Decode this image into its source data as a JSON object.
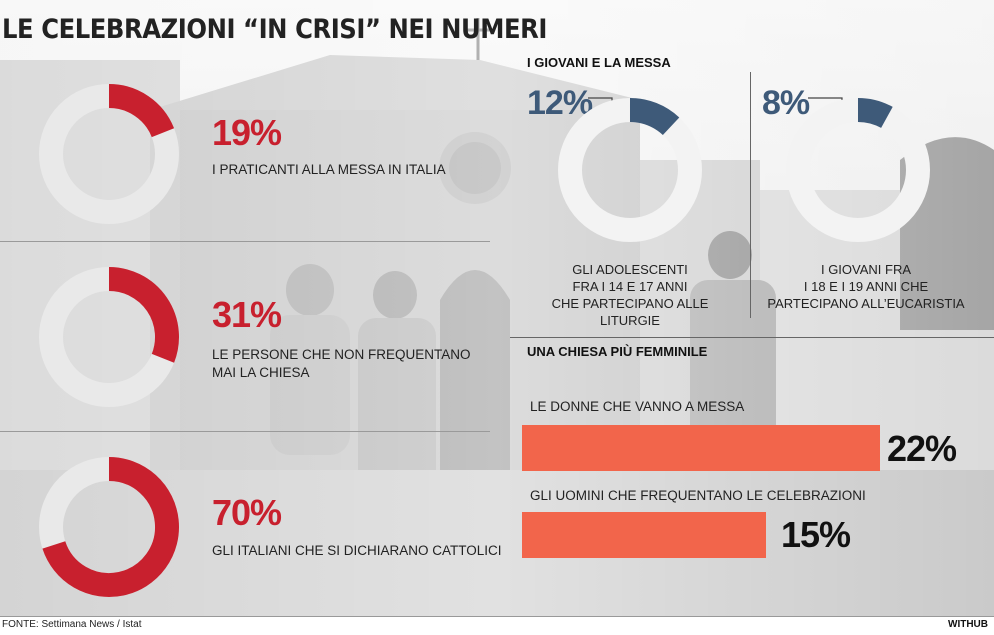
{
  "title": "LE CELEBRAZIONI “IN CRISI” NEI NUMERI",
  "colors": {
    "red": "#c8202e",
    "blue": "#3e5a79",
    "ring": "#e9e9e9",
    "bar": "#f2654b"
  },
  "chart_data": [
    {
      "type": "pie",
      "items": [
        {
          "value": 19,
          "value_label": "19%",
          "label": "I PRATICANTI ALLA MESSA IN ITALIA"
        },
        {
          "value": 31,
          "value_label": "31%",
          "label_lines": [
            "LE PERSONE CHE NON FREQUENTANO",
            "MAI LA CHIESA"
          ]
        },
        {
          "value": 70,
          "value_label": "70%",
          "label": "GLI ITALIANI CHE SI DICHIARANO CATTOLICI"
        }
      ]
    },
    {
      "type": "pie",
      "title": "I GIOVANI E LA MESSA",
      "items": [
        {
          "value": 12,
          "value_label": "12%",
          "label_lines": [
            "GLI ADOLESCENTI",
            "FRA I 14 E 17 ANNI",
            "CHE PARTECIPANO ALLE LITURGIE"
          ]
        },
        {
          "value": 8,
          "value_label": "8%",
          "label_lines": [
            "I GIOVANI FRA",
            "I 18 E I 19 ANNI CHE",
            "PARTECIPANO ALL’EUCARISTIA"
          ]
        }
      ]
    },
    {
      "type": "bar",
      "title": "UNA CHIESA PIÙ FEMMINILE",
      "categories": [
        "LE DONNE CHE VANNO A MESSA",
        "GLI UOMINI CHE FREQUENTANO LE CELEBRAZIONI"
      ],
      "values": [
        22,
        15
      ],
      "value_labels": [
        "22%",
        "15%"
      ]
    }
  ],
  "footer": {
    "source": "FONTE: Settimana News / Istat",
    "brand": "WITHUB"
  }
}
